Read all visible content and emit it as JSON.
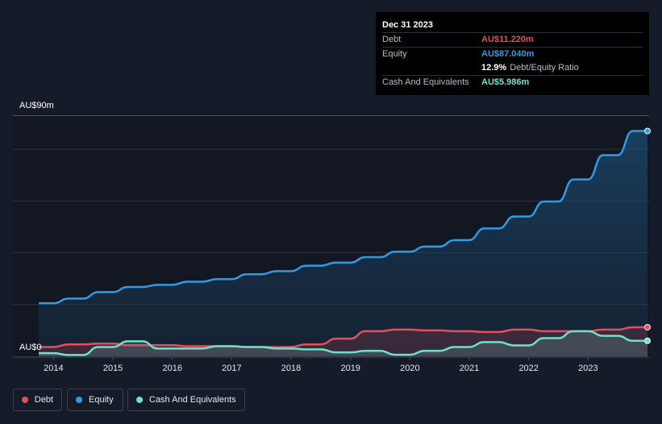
{
  "tooltip": {
    "date": "Dec 31 2023",
    "debt_label": "Debt",
    "debt_value": "AU$11.220m",
    "equity_label": "Equity",
    "equity_value": "AU$87.040m",
    "ratio_value": "12.9%",
    "ratio_label": "Debt/Equity Ratio",
    "cash_label": "Cash And Equivalents",
    "cash_value": "AU$5.986m"
  },
  "y_top_label": "AU$90m",
  "y_bottom_label": "AU$0",
  "legend": [
    {
      "label": "Debt",
      "color": "#e0505e"
    },
    {
      "label": "Equity",
      "color": "#2f9be6"
    },
    {
      "label": "Cash And Equivalents",
      "color": "#6fe0cc"
    }
  ],
  "colors": {
    "debt": "#e0505e",
    "equity": "#2f9be6",
    "cash": "#6fe0cc",
    "grid": "#2c3240"
  },
  "chart_data": {
    "type": "line",
    "ylim": [
      0,
      90
    ],
    "xlim": [
      2013.75,
      2024.0
    ],
    "x_ticks": [
      "2014",
      "2015",
      "2016",
      "2017",
      "2018",
      "2019",
      "2020",
      "2021",
      "2022",
      "2023"
    ],
    "series": [
      {
        "name": "Equity",
        "points": [
          [
            2013.75,
            20.5
          ],
          [
            2014.0,
            20.5
          ],
          [
            2014.25,
            22.3
          ],
          [
            2014.5,
            22.3
          ],
          [
            2014.75,
            24.8
          ],
          [
            2015.0,
            24.8
          ],
          [
            2015.25,
            26.8
          ],
          [
            2015.5,
            26.8
          ],
          [
            2015.75,
            27.6
          ],
          [
            2016.0,
            27.6
          ],
          [
            2016.25,
            28.8
          ],
          [
            2016.5,
            28.8
          ],
          [
            2016.75,
            29.8
          ],
          [
            2017.0,
            29.8
          ],
          [
            2017.25,
            31.7
          ],
          [
            2017.5,
            31.7
          ],
          [
            2017.75,
            32.9
          ],
          [
            2018.0,
            32.9
          ],
          [
            2018.25,
            35.0
          ],
          [
            2018.5,
            35.0
          ],
          [
            2018.75,
            36.2
          ],
          [
            2019.0,
            36.2
          ],
          [
            2019.25,
            38.3
          ],
          [
            2019.5,
            38.3
          ],
          [
            2019.75,
            40.4
          ],
          [
            2020.0,
            40.4
          ],
          [
            2020.25,
            42.4
          ],
          [
            2020.5,
            42.4
          ],
          [
            2020.75,
            44.9
          ],
          [
            2021.0,
            44.9
          ],
          [
            2021.25,
            49.4
          ],
          [
            2021.5,
            49.4
          ],
          [
            2021.75,
            54.0
          ],
          [
            2022.0,
            54.0
          ],
          [
            2022.25,
            59.8
          ],
          [
            2022.5,
            59.8
          ],
          [
            2022.75,
            68.3
          ],
          [
            2023.0,
            68.3
          ],
          [
            2023.25,
            77.7
          ],
          [
            2023.5,
            77.7
          ],
          [
            2023.75,
            87.04
          ],
          [
            2024.0,
            87.04
          ]
        ]
      },
      {
        "name": "Debt",
        "points": [
          [
            2013.75,
            3.6
          ],
          [
            2014.0,
            3.6
          ],
          [
            2014.25,
            4.6
          ],
          [
            2014.5,
            4.6
          ],
          [
            2014.75,
            4.9
          ],
          [
            2015.0,
            4.9
          ],
          [
            2015.25,
            4.3
          ],
          [
            2015.5,
            4.3
          ],
          [
            2015.75,
            4.3
          ],
          [
            2016.0,
            4.3
          ],
          [
            2016.25,
            3.9
          ],
          [
            2016.5,
            3.9
          ],
          [
            2016.75,
            3.9
          ],
          [
            2017.0,
            3.9
          ],
          [
            2017.25,
            3.6
          ],
          [
            2017.5,
            3.6
          ],
          [
            2017.75,
            3.6
          ],
          [
            2018.0,
            3.6
          ],
          [
            2018.25,
            4.6
          ],
          [
            2018.5,
            4.6
          ],
          [
            2018.75,
            6.8
          ],
          [
            2019.0,
            6.8
          ],
          [
            2019.25,
            9.7
          ],
          [
            2019.5,
            9.7
          ],
          [
            2019.75,
            10.3
          ],
          [
            2020.0,
            10.3
          ],
          [
            2020.25,
            10.0
          ],
          [
            2020.5,
            10.0
          ],
          [
            2020.75,
            9.7
          ],
          [
            2021.0,
            9.7
          ],
          [
            2021.25,
            9.4
          ],
          [
            2021.5,
            9.4
          ],
          [
            2021.75,
            10.3
          ],
          [
            2022.0,
            10.3
          ],
          [
            2022.25,
            9.7
          ],
          [
            2022.5,
            9.7
          ],
          [
            2022.75,
            9.7
          ],
          [
            2023.0,
            9.7
          ],
          [
            2023.25,
            10.3
          ],
          [
            2023.5,
            10.3
          ],
          [
            2023.75,
            11.22
          ],
          [
            2024.0,
            11.22
          ]
        ]
      },
      {
        "name": "Cash And Equivalents",
        "points": [
          [
            2013.75,
            1.2
          ],
          [
            2014.0,
            1.2
          ],
          [
            2014.25,
            0.5
          ],
          [
            2014.5,
            0.5
          ],
          [
            2014.75,
            3.6
          ],
          [
            2015.0,
            3.6
          ],
          [
            2015.25,
            5.8
          ],
          [
            2015.5,
            5.8
          ],
          [
            2015.75,
            3.0
          ],
          [
            2016.0,
            3.0
          ],
          [
            2016.25,
            3.0
          ],
          [
            2016.5,
            3.0
          ],
          [
            2016.75,
            3.9
          ],
          [
            2017.0,
            3.9
          ],
          [
            2017.25,
            3.6
          ],
          [
            2017.5,
            3.6
          ],
          [
            2017.75,
            3.0
          ],
          [
            2018.0,
            3.0
          ],
          [
            2018.25,
            2.7
          ],
          [
            2018.5,
            2.7
          ],
          [
            2018.75,
            1.5
          ],
          [
            2019.0,
            1.5
          ],
          [
            2019.25,
            2.1
          ],
          [
            2019.5,
            2.1
          ],
          [
            2019.75,
            0.6
          ],
          [
            2020.0,
            0.6
          ],
          [
            2020.25,
            2.1
          ],
          [
            2020.5,
            2.1
          ],
          [
            2020.75,
            3.6
          ],
          [
            2021.0,
            3.6
          ],
          [
            2021.25,
            5.5
          ],
          [
            2021.5,
            5.5
          ],
          [
            2021.75,
            4.2
          ],
          [
            2022.0,
            4.2
          ],
          [
            2022.25,
            7.0
          ],
          [
            2022.5,
            7.0
          ],
          [
            2022.75,
            9.7
          ],
          [
            2023.0,
            9.7
          ],
          [
            2023.25,
            7.9
          ],
          [
            2023.5,
            7.9
          ],
          [
            2023.75,
            5.986
          ],
          [
            2024.0,
            5.986
          ]
        ]
      }
    ]
  }
}
